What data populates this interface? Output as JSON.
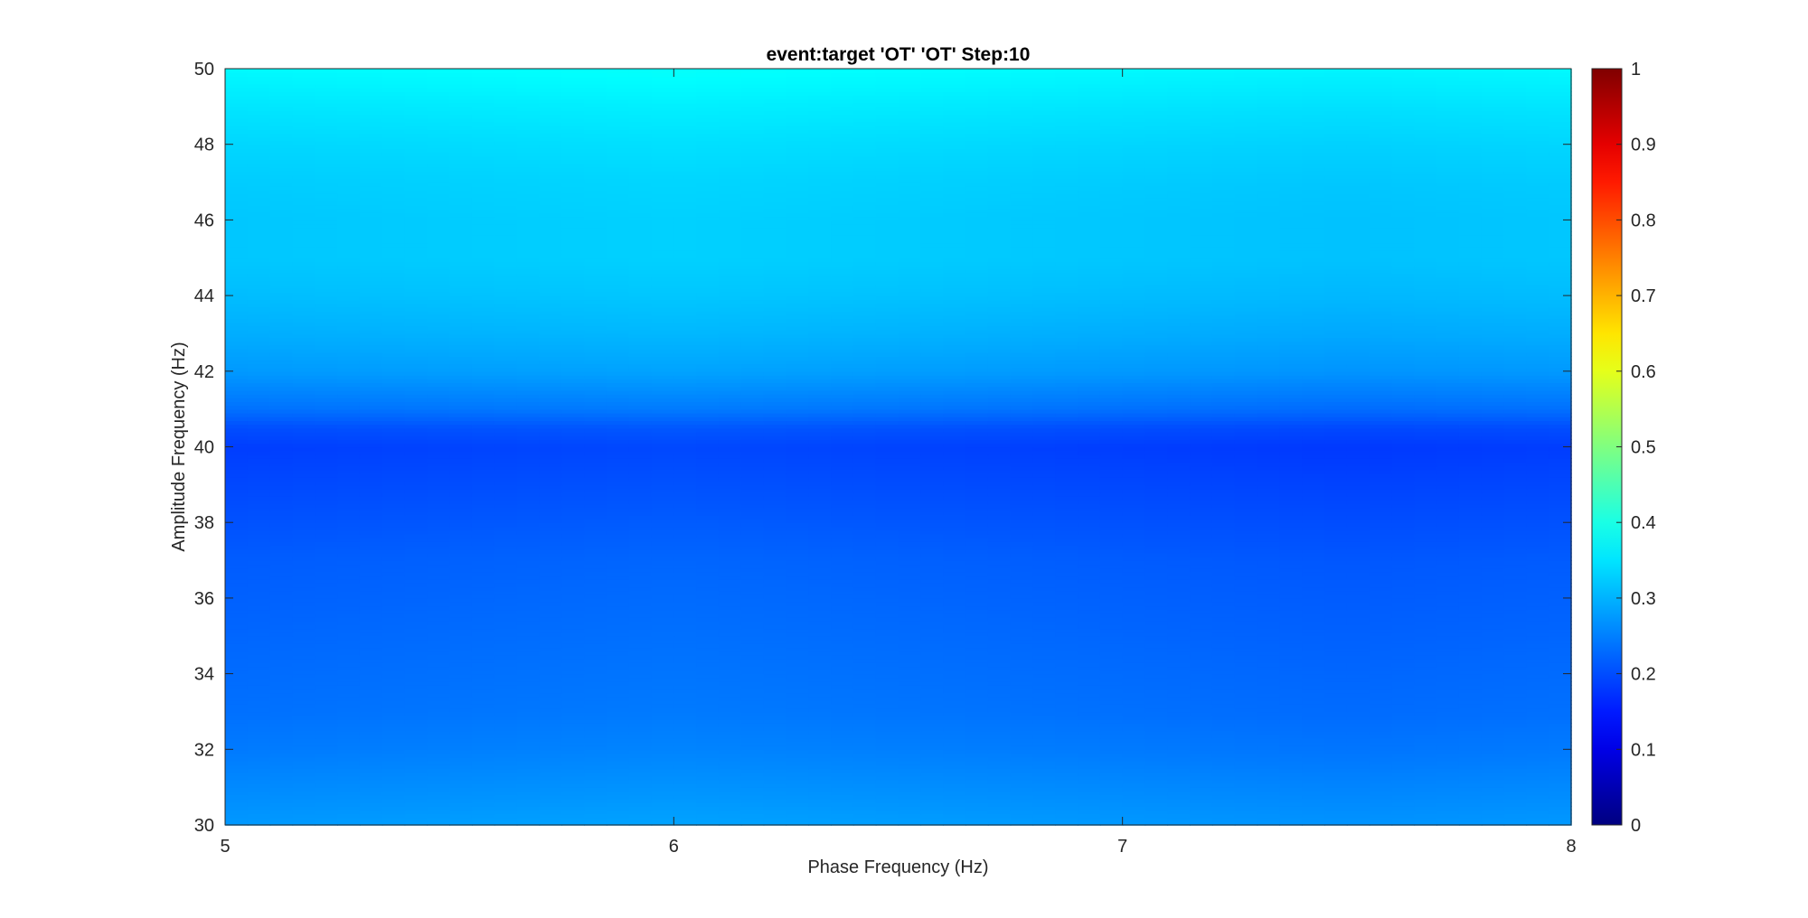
{
  "chart_data": {
    "type": "heatmap",
    "title": "event:target 'OT'  'OT' Step:10",
    "xlabel": "Phase Frequency (Hz)",
    "ylabel": "Amplitude Frequency (Hz)",
    "xlim": [
      5,
      8
    ],
    "ylim": [
      30,
      50
    ],
    "x_ticks": [
      5,
      6,
      7,
      8
    ],
    "y_ticks": [
      30,
      32,
      34,
      36,
      38,
      40,
      42,
      44,
      46,
      48,
      50
    ],
    "colormap": "jet",
    "clim": [
      0,
      1
    ],
    "colorbar_ticks": [
      0,
      0.1,
      0.2,
      0.3,
      0.4,
      0.5,
      0.6,
      0.7,
      0.8,
      0.9,
      1
    ],
    "amplitude_profile": {
      "y": [
        30,
        31,
        32,
        33,
        34,
        35,
        36,
        37,
        38,
        39,
        40,
        40.5,
        41,
        42,
        43,
        44,
        45,
        46,
        47,
        48,
        49,
        50
      ],
      "value": [
        0.275,
        0.26,
        0.245,
        0.235,
        0.23,
        0.225,
        0.22,
        0.215,
        0.205,
        0.195,
        0.185,
        0.2,
        0.235,
        0.275,
        0.295,
        0.31,
        0.32,
        0.32,
        0.325,
        0.335,
        0.35,
        0.37
      ]
    },
    "phase_variation": {
      "x": [
        5,
        5.5,
        6,
        6.5,
        7,
        7.5,
        8
      ],
      "delta": [
        0.0,
        0.005,
        0.01,
        0.005,
        0.0,
        -0.005,
        0.0
      ]
    }
  }
}
